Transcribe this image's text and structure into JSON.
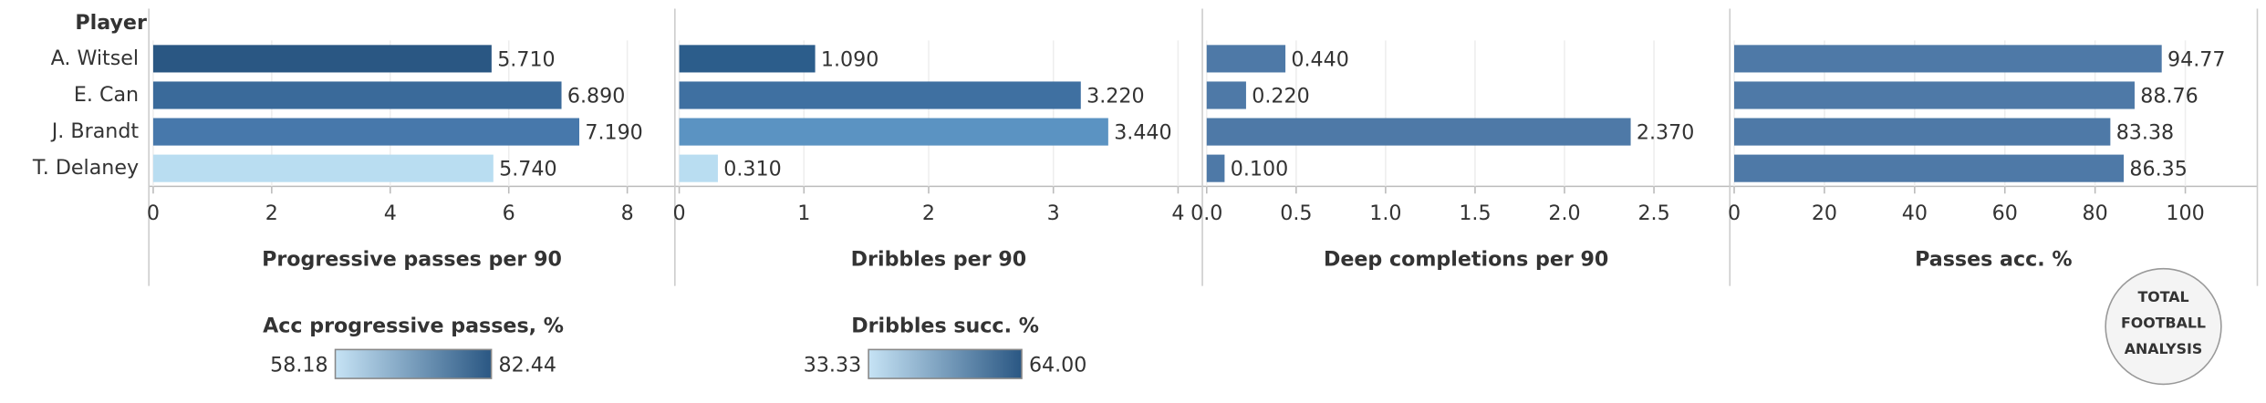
{
  "chart_data": {
    "type": "bar",
    "row_header": "Player",
    "categories": [
      "A. Witsel",
      "E. Can",
      "J. Brandt",
      "T. Delaney"
    ],
    "panels": [
      {
        "x_label": "Progressive passes per 90",
        "values": [
          5.71,
          6.89,
          7.19,
          5.74
        ],
        "value_labels": [
          "5.710",
          "6.890",
          "7.190",
          "5.740"
        ],
        "colors": [
          "#2a5783",
          "#3a6a9a",
          "#4778ab",
          "#b9ddf1"
        ],
        "xlim": [
          0,
          8.73
        ],
        "xticks": [
          0,
          2,
          4,
          6,
          8
        ]
      },
      {
        "x_label": "Dribbles per 90",
        "values": [
          1.09,
          3.22,
          3.44,
          0.31
        ],
        "value_labels": [
          "1.090",
          "3.220",
          "3.440",
          "0.310"
        ],
        "colors": [
          "#2c5d8b",
          "#3f70a1",
          "#5b93c2",
          "#b9ddf1"
        ],
        "xlim": [
          0,
          4.16
        ],
        "xticks": [
          0,
          1,
          2,
          3,
          4
        ]
      },
      {
        "x_label": "Deep completions per 90",
        "values": [
          0.44,
          0.22,
          2.37,
          0.1
        ],
        "value_labels": [
          "0.440",
          "0.220",
          "2.370",
          "0.100"
        ],
        "colors": [
          "#4e79a7",
          "#4e79a7",
          "#4e79a7",
          "#4e79a7"
        ],
        "xlim": [
          0,
          2.9
        ],
        "xticks": [
          {
            "value": 0,
            "label": "0.0"
          },
          0.5,
          {
            "value": 1,
            "label": "1.0"
          },
          1.5,
          {
            "value": 2,
            "label": "2.0"
          },
          2.5
        ]
      },
      {
        "x_label": "Passes acc. %",
        "values": [
          94.77,
          88.76,
          83.38,
          86.35
        ],
        "colors": [
          "#4e79a7",
          "#4e79a7",
          "#4e79a7",
          "#4e79a7"
        ],
        "xlim": [
          0,
          115
        ],
        "xticks": [
          0,
          20,
          40,
          60,
          80,
          100
        ]
      }
    ],
    "legends": [
      {
        "title": "Acc progressive passes, %",
        "min": 58.18,
        "max": 82.44,
        "colors": [
          "#c6e3f5",
          "#2a5783"
        ]
      },
      {
        "title": "Dribbles succ. %",
        "min": 33.33,
        "max": {
          "value": 64,
          "label": "64.00"
        },
        "colors": [
          "#c6e3f5",
          "#2a5783"
        ]
      }
    ],
    "logo": [
      "TOTAL",
      "FOOTBALL",
      "ANALYSIS"
    ]
  }
}
